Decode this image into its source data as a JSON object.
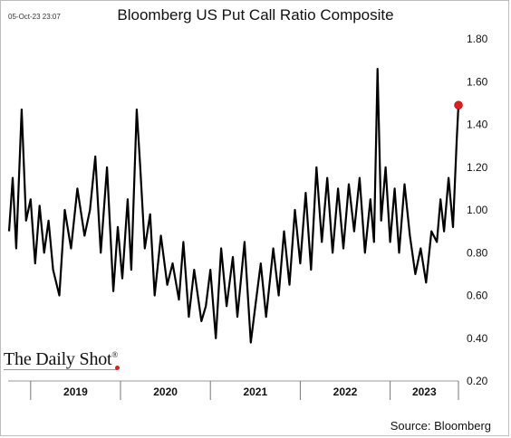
{
  "chart_data": {
    "type": "line",
    "title": "Bloomberg US Put Call Ratio Composite",
    "timestamp": "05-Oct-23 23:07",
    "source": "Source: Bloomberg",
    "brand": "The Daily Shot",
    "brand_mark": "®",
    "xlabel": "",
    "ylabel": "",
    "x_range": [
      2018.75,
      2023.76
    ],
    "ylim": [
      0.2,
      1.8
    ],
    "yticks": [
      0.2,
      0.4,
      0.6,
      0.8,
      1.0,
      1.2,
      1.4,
      1.6,
      1.8
    ],
    "ytick_labels": [
      "0.20",
      "0.40",
      "0.60",
      "0.80",
      "1.00",
      "1.20",
      "1.40",
      "1.60",
      "1.80"
    ],
    "year_labels": [
      "2019",
      "2020",
      "2021",
      "2022",
      "2023"
    ],
    "year_boundaries": [
      2019.0,
      2020.0,
      2021.0,
      2022.0,
      2023.0
    ],
    "grid": false,
    "line_color": "#000000",
    "highlight_color": "#e31b1b",
    "series": [
      {
        "points": [
          [
            2018.76,
            0.9
          ],
          [
            2018.8,
            1.15
          ],
          [
            2018.84,
            0.82
          ],
          [
            2018.9,
            1.47
          ],
          [
            2018.95,
            0.95
          ],
          [
            2019.0,
            1.05
          ],
          [
            2019.05,
            0.75
          ],
          [
            2019.1,
            1.02
          ],
          [
            2019.15,
            0.8
          ],
          [
            2019.2,
            0.95
          ],
          [
            2019.25,
            0.72
          ],
          [
            2019.32,
            0.6
          ],
          [
            2019.38,
            1.0
          ],
          [
            2019.45,
            0.82
          ],
          [
            2019.52,
            1.1
          ],
          [
            2019.6,
            0.88
          ],
          [
            2019.66,
            1.0
          ],
          [
            2019.72,
            1.25
          ],
          [
            2019.78,
            0.8
          ],
          [
            2019.85,
            1.2
          ],
          [
            2019.92,
            0.62
          ],
          [
            2019.97,
            0.92
          ],
          [
            2020.02,
            0.68
          ],
          [
            2020.08,
            1.05
          ],
          [
            2020.12,
            0.72
          ],
          [
            2020.18,
            1.47
          ],
          [
            2020.22,
            1.2
          ],
          [
            2020.27,
            0.82
          ],
          [
            2020.33,
            0.98
          ],
          [
            2020.38,
            0.6
          ],
          [
            2020.45,
            0.88
          ],
          [
            2020.52,
            0.65
          ],
          [
            2020.58,
            0.75
          ],
          [
            2020.65,
            0.58
          ],
          [
            2020.7,
            0.85
          ],
          [
            2020.76,
            0.5
          ],
          [
            2020.82,
            0.72
          ],
          [
            2020.9,
            0.48
          ],
          [
            2020.95,
            0.55
          ],
          [
            2021.0,
            0.72
          ],
          [
            2021.06,
            0.4
          ],
          [
            2021.12,
            0.82
          ],
          [
            2021.18,
            0.55
          ],
          [
            2021.25,
            0.78
          ],
          [
            2021.3,
            0.5
          ],
          [
            2021.38,
            0.85
          ],
          [
            2021.45,
            0.38
          ],
          [
            2021.5,
            0.55
          ],
          [
            2021.56,
            0.75
          ],
          [
            2021.62,
            0.5
          ],
          [
            2021.7,
            0.82
          ],
          [
            2021.76,
            0.6
          ],
          [
            2021.82,
            0.9
          ],
          [
            2021.88,
            0.65
          ],
          [
            2021.94,
            1.0
          ],
          [
            2022.0,
            0.75
          ],
          [
            2022.06,
            1.08
          ],
          [
            2022.12,
            0.72
          ],
          [
            2022.18,
            1.2
          ],
          [
            2022.24,
            0.85
          ],
          [
            2022.3,
            1.15
          ],
          [
            2022.36,
            0.8
          ],
          [
            2022.42,
            1.1
          ],
          [
            2022.48,
            0.82
          ],
          [
            2022.54,
            1.12
          ],
          [
            2022.6,
            0.9
          ],
          [
            2022.66,
            1.15
          ],
          [
            2022.72,
            0.8
          ],
          [
            2022.78,
            1.05
          ],
          [
            2022.82,
            0.85
          ],
          [
            2022.86,
            1.66
          ],
          [
            2022.9,
            0.95
          ],
          [
            2022.95,
            1.2
          ],
          [
            2023.0,
            0.85
          ],
          [
            2023.05,
            1.1
          ],
          [
            2023.1,
            0.8
          ],
          [
            2023.16,
            1.12
          ],
          [
            2023.22,
            0.88
          ],
          [
            2023.28,
            0.7
          ],
          [
            2023.34,
            0.82
          ],
          [
            2023.4,
            0.66
          ],
          [
            2023.46,
            0.9
          ],
          [
            2023.52,
            0.85
          ],
          [
            2023.56,
            1.05
          ],
          [
            2023.6,
            0.9
          ],
          [
            2023.65,
            1.15
          ],
          [
            2023.7,
            0.92
          ],
          [
            2023.74,
            1.32
          ],
          [
            2023.76,
            1.49
          ]
        ]
      }
    ],
    "highlight_point": [
      2023.76,
      1.49
    ]
  }
}
